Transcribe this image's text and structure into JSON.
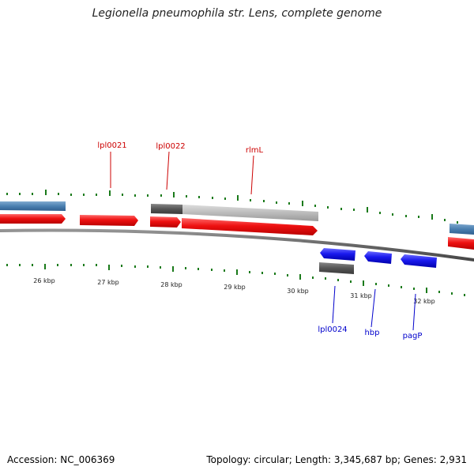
{
  "title": "Legionella pneumophila str. Lens, complete genome",
  "footer": {
    "accession": "Accession: NC_006369",
    "summary": "Topology: circular; Length: 3,345,687 bp; Genes: 2,931"
  },
  "colors": {
    "forward_gene": "#ee1111",
    "reverse_gene": "#1a1aee",
    "feature_light": "#bbbbbb",
    "feature_dark": "#555555",
    "feature_blue": "#4a7fb0",
    "tick": "#1a7a1a",
    "backbone": "#666666",
    "forward_label": "#cc0000",
    "reverse_label": "#0000cc"
  },
  "kbp_labels": [
    "26 kbp",
    "27 kbp",
    "28 kbp",
    "29 kbp",
    "30 kbp",
    "31 kbp",
    "32 kbp"
  ],
  "gene_labels": {
    "forward": [
      "lpl0021",
      "lpl0022",
      "rlmL"
    ],
    "reverse": [
      "lpl0024",
      "hbp",
      "pagP"
    ]
  }
}
